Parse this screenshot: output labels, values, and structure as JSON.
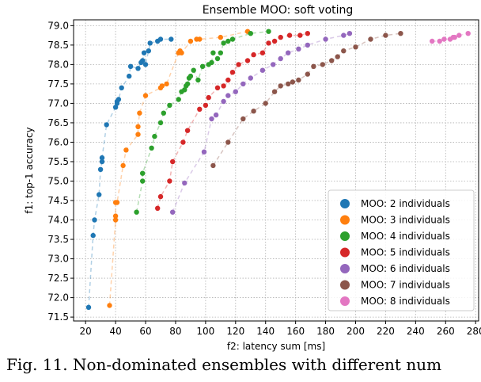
{
  "chart_data": {
    "type": "scatter",
    "title": "Ensemble MOO: soft voting",
    "xlabel": "f2: latency sum [ms]",
    "ylabel": "f1: top-1 accuracy",
    "xlim": [
      12,
      282
    ],
    "ylim": [
      71.4,
      79.15
    ],
    "xticks": [
      20,
      40,
      60,
      80,
      100,
      120,
      140,
      160,
      180,
      200,
      220,
      240,
      260,
      280
    ],
    "yticks": [
      71.5,
      72.0,
      72.5,
      73.0,
      73.5,
      74.0,
      74.5,
      75.0,
      75.5,
      76.0,
      76.5,
      77.0,
      77.5,
      78.0,
      78.5,
      79.0
    ],
    "grid": true,
    "legend_position": "bottom-right",
    "series": [
      {
        "name": "MOO: 2 individuals",
        "color": "#1f77b4",
        "x": [
          22,
          25,
          26,
          29,
          30,
          31,
          31,
          34,
          40,
          41,
          41,
          42,
          44,
          49,
          50,
          55,
          57,
          58,
          59,
          60,
          62,
          63,
          68,
          70,
          77
        ],
        "y": [
          71.75,
          73.6,
          74.0,
          74.65,
          75.3,
          75.5,
          75.6,
          76.45,
          76.9,
          77.0,
          77.05,
          77.1,
          77.4,
          77.7,
          77.95,
          77.9,
          78.05,
          78.1,
          78.3,
          78.0,
          78.35,
          78.55,
          78.6,
          78.65,
          78.65
        ]
      },
      {
        "name": "MOO: 3 individuals",
        "color": "#ff7f0e",
        "x": [
          36,
          40,
          40,
          40,
          41,
          45,
          47,
          55,
          55,
          56,
          60,
          70,
          71,
          74,
          82,
          83,
          84,
          90,
          94,
          96,
          110,
          128
        ],
        "y": [
          71.8,
          74.0,
          74.1,
          74.45,
          74.45,
          75.4,
          75.8,
          76.2,
          76.4,
          76.75,
          77.2,
          77.4,
          77.45,
          77.5,
          78.3,
          78.35,
          78.3,
          78.6,
          78.65,
          78.65,
          78.7,
          78.85
        ]
      },
      {
        "name": "MOO: 4 individuals",
        "color": "#2ca02c",
        "x": [
          54,
          58,
          58,
          64,
          66,
          70,
          72,
          76,
          82,
          84,
          86,
          87,
          88,
          89,
          90,
          92,
          95,
          98,
          102,
          104,
          105,
          108,
          110,
          112,
          115,
          118,
          130,
          142
        ],
        "y": [
          74.2,
          75.0,
          75.2,
          75.85,
          76.15,
          76.5,
          76.75,
          76.95,
          77.1,
          77.3,
          77.35,
          77.45,
          77.5,
          77.65,
          77.7,
          77.85,
          77.6,
          77.95,
          78.0,
          78.05,
          78.3,
          78.15,
          78.3,
          78.55,
          78.6,
          78.65,
          78.8,
          78.85
        ]
      },
      {
        "name": "MOO: 5 individuals",
        "color": "#d62728",
        "x": [
          68,
          70,
          76,
          78,
          85,
          88,
          96,
          100,
          102,
          108,
          112,
          115,
          118,
          122,
          128,
          132,
          138,
          142,
          146,
          150,
          156,
          163,
          168
        ],
        "y": [
          74.3,
          74.6,
          75.0,
          75.5,
          76.0,
          76.3,
          76.85,
          76.95,
          77.15,
          77.4,
          77.45,
          77.6,
          77.8,
          78.0,
          78.1,
          78.25,
          78.3,
          78.55,
          78.6,
          78.7,
          78.75,
          78.75,
          78.8
        ]
      },
      {
        "name": "MOO: 6 individuals",
        "color": "#9467bd",
        "x": [
          78,
          86,
          99,
          104,
          107,
          112,
          115,
          120,
          125,
          130,
          138,
          145,
          150,
          155,
          162,
          168,
          180,
          192,
          196
        ],
        "y": [
          74.2,
          74.95,
          75.75,
          76.6,
          76.7,
          77.05,
          77.2,
          77.3,
          77.5,
          77.65,
          77.85,
          78.0,
          78.15,
          78.3,
          78.4,
          78.5,
          78.65,
          78.75,
          78.8
        ]
      },
      {
        "name": "MOO: 7 individuals",
        "color": "#8c564b",
        "x": [
          105,
          115,
          125,
          132,
          140,
          146,
          150,
          155,
          158,
          162,
          168,
          172,
          178,
          184,
          188,
          192,
          200,
          210,
          220,
          230
        ],
        "y": [
          75.4,
          76.0,
          76.6,
          76.8,
          77.0,
          77.3,
          77.45,
          77.5,
          77.55,
          77.6,
          77.75,
          77.95,
          78.0,
          78.1,
          78.2,
          78.35,
          78.45,
          78.65,
          78.75,
          78.8
        ]
      },
      {
        "name": "MOO: 8 individuals",
        "color": "#e377c2",
        "x": [
          251,
          256,
          259,
          263,
          265,
          266,
          269,
          275
        ],
        "y": [
          78.6,
          78.6,
          78.65,
          78.65,
          78.7,
          78.7,
          78.75,
          78.8
        ]
      }
    ]
  },
  "caption_text": "Fig. 11. Non-dominated ensembles with different num"
}
